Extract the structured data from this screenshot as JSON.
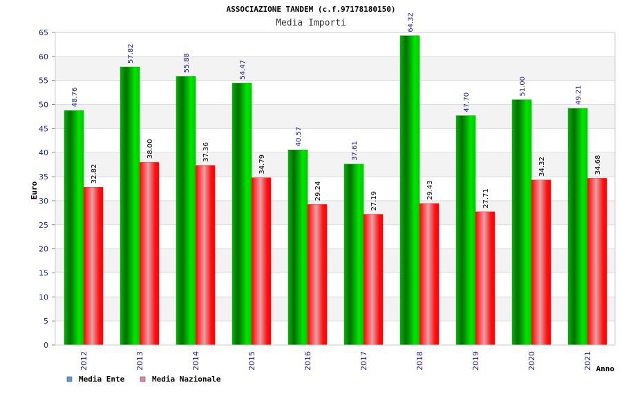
{
  "chart_data": {
    "type": "bar",
    "title": "ASSOCIAZIONE TANDEM (c.f.97178180150)",
    "subtitle": "Media Importi",
    "ylabel": "Euro",
    "xlabel": "Anno",
    "ylim": [
      0,
      65
    ],
    "yticks": [
      "0",
      "5",
      "10",
      "15",
      "20",
      "25",
      "30",
      "35",
      "40",
      "45",
      "50",
      "55",
      "60",
      "65"
    ],
    "categories": [
      "2012",
      "2013",
      "2014",
      "2015",
      "2016",
      "2017",
      "2018",
      "2019",
      "2020",
      "2021"
    ],
    "series": [
      {
        "name": "Media Ente",
        "values": [
          48.76,
          57.82,
          55.88,
          54.47,
          40.57,
          37.61,
          64.32,
          47.7,
          51.0,
          49.21
        ],
        "labels": [
          "48.76",
          "57.82",
          "55.88",
          "54.47",
          "40.57",
          "37.61",
          "64.32",
          "47.70",
          "51.00",
          "49.21"
        ],
        "label_color": "#1a1aa6",
        "legend_color": "#5b9bd5"
      },
      {
        "name": "Media Nazionale",
        "values": [
          32.82,
          38.0,
          37.36,
          34.79,
          29.24,
          27.19,
          29.43,
          27.71,
          34.32,
          34.68
        ],
        "labels": [
          "32.82",
          "38.00",
          "37.36",
          "34.79",
          "29.24",
          "27.19",
          "29.43",
          "27.71",
          "34.32",
          "34.68"
        ],
        "label_color": "#000000",
        "legend_color": "#e080b0"
      }
    ],
    "grid": true,
    "legend_position": "bottom-left"
  }
}
